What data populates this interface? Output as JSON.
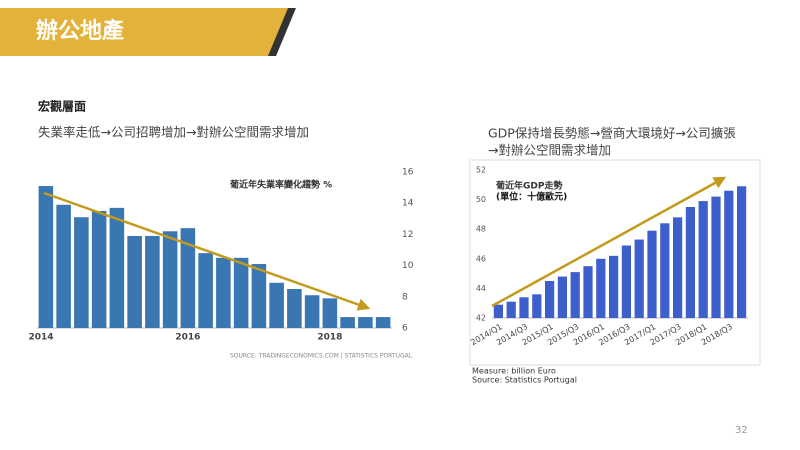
{
  "header": {
    "title": "辦公地產"
  },
  "section": "宏觀層面",
  "left_caption": "失業率走低→公司招聘增加→對辦公空間需求增加",
  "right_caption": [
    "GDP保持增長勢態→營商大環境好→公司擴張",
    "→對辦公空間需求增加"
  ],
  "page_number": "32",
  "chart_data": [
    {
      "type": "bar",
      "title": "葡近年失業率變化趨勢 %",
      "categories": [
        "2014",
        null,
        null,
        null,
        null,
        null,
        null,
        null,
        "2016",
        null,
        null,
        null,
        null,
        null,
        null,
        null,
        "2018",
        null,
        null,
        null
      ],
      "values": [
        15.1,
        13.9,
        13.1,
        13.5,
        13.7,
        11.9,
        11.9,
        12.2,
        12.4,
        10.8,
        10.5,
        10.5,
        10.1,
        8.9,
        8.5,
        8.1,
        7.9,
        6.7,
        6.7,
        6.7
      ],
      "color": "#3a76b2",
      "ylim": [
        6,
        16
      ],
      "yticks": [
        6,
        8,
        10,
        12,
        14,
        16
      ],
      "yaxis_side": "right",
      "grid": false,
      "source": "SOURCE: TRADINGECONOMICS.COM  |  STATISTICS PORTUGAL"
    },
    {
      "type": "bar",
      "title": "葡近年GDP走勢",
      "subtitle": "(單位：十億歐元)",
      "categories": [
        "2014/Q1",
        null,
        "2014/Q3",
        null,
        "2015/Q1",
        null,
        "2015/Q3",
        null,
        "2016/Q1",
        null,
        "2016/Q3",
        null,
        "2017/Q1",
        null,
        "2017/Q3",
        null,
        "2018/Q1",
        null,
        "2018/Q3",
        null
      ],
      "values": [
        42.9,
        43.1,
        43.4,
        43.6,
        44.5,
        44.8,
        45.1,
        45.5,
        46.0,
        46.2,
        46.9,
        47.3,
        47.9,
        48.4,
        48.8,
        49.5,
        49.9,
        50.2,
        50.6,
        50.9
      ],
      "color": "#3d5fcc",
      "ylim": [
        42,
        52
      ],
      "yticks": [
        42,
        44,
        46,
        48,
        50,
        52
      ],
      "yaxis_side": "left",
      "grid": false,
      "notes": [
        "Measure: billion Euro",
        "Source: Statistics Portugal"
      ]
    }
  ]
}
